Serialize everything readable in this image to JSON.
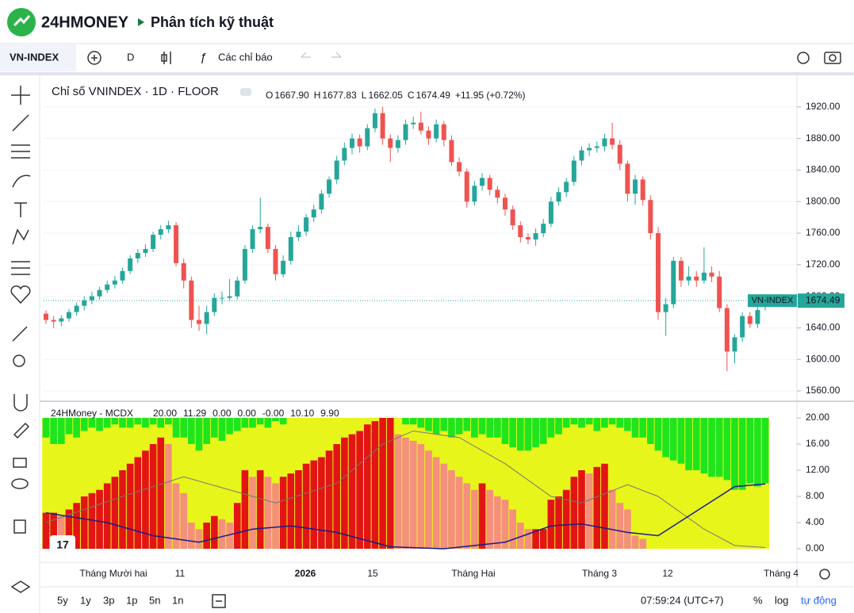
{
  "header": {
    "brand": "24HMONEY",
    "page": "Phân tích kỹ thuật"
  },
  "toolbar": {
    "symbol": "VN-INDEX",
    "interval": "D",
    "indicators": "Các chỉ báo"
  },
  "chart_data": {
    "type": "candlestick",
    "title": "Chỉ số VNINDEX · 1D · FLOOR",
    "ohlc": [
      {
        "key": "O",
        "text": "1667.90"
      },
      {
        "key": "H",
        "text": "1677.83"
      },
      {
        "key": "L",
        "text": "1662.05"
      },
      {
        "key": "C",
        "text": "1674.49"
      }
    ],
    "change": "+11.95 (+0.72%)",
    "up_color": "#26a69a",
    "down_color": "#ef5350",
    "candles": [
      [
        1658,
        1662,
        1645,
        1650
      ],
      [
        1650,
        1655,
        1640,
        1648
      ],
      [
        1648,
        1656,
        1642,
        1652
      ],
      [
        1652,
        1664,
        1648,
        1660
      ],
      [
        1660,
        1672,
        1655,
        1668
      ],
      [
        1668,
        1680,
        1662,
        1675
      ],
      [
        1675,
        1686,
        1670,
        1680
      ],
      [
        1680,
        1692,
        1676,
        1688
      ],
      [
        1688,
        1700,
        1684,
        1695
      ],
      [
        1695,
        1706,
        1690,
        1700
      ],
      [
        1700,
        1716,
        1696,
        1712
      ],
      [
        1712,
        1732,
        1708,
        1728
      ],
      [
        1728,
        1740,
        1722,
        1735
      ],
      [
        1735,
        1746,
        1730,
        1740
      ],
      [
        1740,
        1762,
        1736,
        1758
      ],
      [
        1758,
        1770,
        1752,
        1765
      ],
      [
        1765,
        1776,
        1760,
        1770
      ],
      [
        1770,
        1774,
        1718,
        1722
      ],
      [
        1722,
        1728,
        1690,
        1700
      ],
      [
        1700,
        1705,
        1640,
        1650
      ],
      [
        1650,
        1668,
        1636,
        1645
      ],
      [
        1645,
        1668,
        1632,
        1660
      ],
      [
        1660,
        1684,
        1655,
        1678
      ],
      [
        1678,
        1686,
        1670,
        1678
      ],
      [
        1678,
        1702,
        1674,
        1680
      ],
      [
        1680,
        1705,
        1676,
        1700
      ],
      [
        1700,
        1745,
        1696,
        1740
      ],
      [
        1740,
        1770,
        1735,
        1765
      ],
      [
        1765,
        1805,
        1760,
        1768
      ],
      [
        1768,
        1772,
        1735,
        1740
      ],
      [
        1740,
        1745,
        1700,
        1708
      ],
      [
        1708,
        1732,
        1704,
        1725
      ],
      [
        1725,
        1762,
        1720,
        1755
      ],
      [
        1755,
        1770,
        1750,
        1762
      ],
      [
        1762,
        1784,
        1756,
        1780
      ],
      [
        1780,
        1796,
        1774,
        1790
      ],
      [
        1790,
        1815,
        1785,
        1810
      ],
      [
        1810,
        1832,
        1805,
        1828
      ],
      [
        1828,
        1858,
        1822,
        1852
      ],
      [
        1852,
        1875,
        1846,
        1868
      ],
      [
        1868,
        1886,
        1860,
        1880
      ],
      [
        1880,
        1885,
        1862,
        1870
      ],
      [
        1870,
        1898,
        1865,
        1893
      ],
      [
        1893,
        1918,
        1888,
        1912
      ],
      [
        1912,
        1920,
        1872,
        1880
      ],
      [
        1880,
        1885,
        1850,
        1868
      ],
      [
        1868,
        1884,
        1862,
        1878
      ],
      [
        1878,
        1904,
        1872,
        1898
      ],
      [
        1898,
        1908,
        1892,
        1900
      ],
      [
        1900,
        1914,
        1885,
        1890
      ],
      [
        1890,
        1895,
        1872,
        1880
      ],
      [
        1880,
        1904,
        1875,
        1898
      ],
      [
        1898,
        1902,
        1870,
        1878
      ],
      [
        1878,
        1884,
        1845,
        1850
      ],
      [
        1850,
        1856,
        1832,
        1838
      ],
      [
        1838,
        1842,
        1792,
        1800
      ],
      [
        1800,
        1826,
        1795,
        1820
      ],
      [
        1820,
        1836,
        1814,
        1830
      ],
      [
        1830,
        1834,
        1808,
        1815
      ],
      [
        1815,
        1820,
        1798,
        1805
      ],
      [
        1805,
        1810,
        1782,
        1790
      ],
      [
        1790,
        1795,
        1764,
        1770
      ],
      [
        1770,
        1775,
        1748,
        1755
      ],
      [
        1755,
        1760,
        1746,
        1752
      ],
      [
        1752,
        1766,
        1744,
        1760
      ],
      [
        1760,
        1778,
        1755,
        1772
      ],
      [
        1772,
        1806,
        1768,
        1800
      ],
      [
        1800,
        1818,
        1795,
        1812
      ],
      [
        1812,
        1830,
        1806,
        1825
      ],
      [
        1825,
        1858,
        1820,
        1852
      ],
      [
        1852,
        1870,
        1846,
        1865
      ],
      [
        1865,
        1874,
        1858,
        1868
      ],
      [
        1868,
        1876,
        1862,
        1870
      ],
      [
        1870,
        1886,
        1864,
        1880
      ],
      [
        1880,
        1900,
        1866,
        1872
      ],
      [
        1872,
        1878,
        1840,
        1848
      ],
      [
        1848,
        1852,
        1800,
        1810
      ],
      [
        1810,
        1834,
        1796,
        1828
      ],
      [
        1828,
        1832,
        1795,
        1802
      ],
      [
        1802,
        1808,
        1752,
        1760
      ],
      [
        1760,
        1768,
        1650,
        1660
      ],
      [
        1660,
        1678,
        1630,
        1670
      ],
      [
        1670,
        1730,
        1665,
        1725
      ],
      [
        1725,
        1730,
        1692,
        1700
      ],
      [
        1700,
        1718,
        1694,
        1705
      ],
      [
        1705,
        1712,
        1692,
        1700
      ],
      [
        1700,
        1742,
        1696,
        1710
      ],
      [
        1710,
        1718,
        1698,
        1705
      ],
      [
        1705,
        1712,
        1660,
        1665
      ],
      [
        1665,
        1670,
        1585,
        1610
      ],
      [
        1610,
        1632,
        1595,
        1628
      ],
      [
        1628,
        1660,
        1622,
        1655
      ],
      [
        1655,
        1660,
        1640,
        1645
      ],
      [
        1645,
        1672,
        1640,
        1662.54
      ],
      [
        1667.9,
        1677.83,
        1662.05,
        1674.49
      ]
    ],
    "ylim": [
      1548,
      1960
    ],
    "yticks": [
      {
        "value": 1560,
        "label": "1560.00"
      },
      {
        "value": 1600,
        "label": "1600.00"
      },
      {
        "value": 1640,
        "label": "1640.00"
      },
      {
        "value": 1680,
        "label": "1680.00"
      },
      {
        "value": 1720,
        "label": "1720.00"
      },
      {
        "value": 1760,
        "label": "1760.00"
      },
      {
        "value": 1800,
        "label": "1800.00"
      },
      {
        "value": 1840,
        "label": "1840.00"
      },
      {
        "value": 1880,
        "label": "1880.00"
      },
      {
        "value": 1920,
        "label": "1920.00"
      }
    ],
    "last_tag": {
      "name": "VN-INDEX",
      "price": {
        "value": 1674.49,
        "label": "1674.49"
      }
    },
    "time_labels": [
      "Tháng Mười hai",
      "11",
      "2026",
      "15",
      "Tháng Hai",
      "Tháng 3",
      "12",
      "Tháng 4"
    ]
  },
  "indicator": {
    "title": "24HMoney - MCDX",
    "legend": [
      {
        "text": "20.00",
        "color": "#2bbf2b"
      },
      {
        "text": "11.29",
        "color": "#cccc00"
      },
      {
        "text": "0.00",
        "color": "#e01010"
      },
      {
        "text": "0.00",
        "color": "#f08a78"
      },
      {
        "text": "-0.00",
        "color": "#131722"
      },
      {
        "text": "10.10",
        "color": "#e8a8b8"
      },
      {
        "text": "9.90",
        "color": "#1a1a8c"
      }
    ],
    "colors": {
      "banker": "#e31414",
      "banker_down": "#f4907c",
      "retail": "#1ee51e",
      "hot": "#e8f51a",
      "blue": "#1a1a8c",
      "gray": "#777777"
    },
    "ylim": [
      -1.94,
      22.42
    ],
    "yticks": [
      {
        "value": 0,
        "label": "0.00"
      },
      {
        "value": 4,
        "label": "4.00"
      },
      {
        "value": 8,
        "label": "8.00"
      },
      {
        "value": 12,
        "label": "12.00"
      },
      {
        "value": 16,
        "label": "16.00"
      },
      {
        "value": 20,
        "label": "20.00"
      }
    ],
    "banker": [
      5.5,
      5.5,
      5,
      6,
      7,
      8,
      8.5,
      9,
      10,
      11,
      12,
      13,
      14,
      15,
      16,
      17,
      16,
      10,
      8.5,
      4,
      3,
      4,
      5,
      4.5,
      4,
      7,
      12,
      11,
      12,
      11,
      10,
      11,
      11.5,
      12,
      13,
      13.5,
      14,
      15,
      16,
      17,
      17.5,
      18,
      19,
      19.5,
      20,
      20,
      17.5,
      17,
      16.5,
      16,
      15,
      14,
      13,
      12,
      11,
      10,
      9,
      10,
      9,
      8,
      7.5,
      6,
      4,
      3,
      3,
      3,
      7.5,
      8,
      9,
      11,
      12,
      11.5,
      12.5,
      13,
      9,
      7,
      6,
      2,
      1.5,
      0,
      0,
      0,
      0,
      0,
      0,
      0,
      0,
      0,
      0,
      0,
      0,
      0,
      0,
      0,
      0
    ],
    "retail": [
      3,
      4,
      4,
      2.5,
      3,
      2,
      1.5,
      2,
      1.5,
      1,
      1.5,
      1.5,
      1,
      1.5,
      1,
      1.5,
      1,
      3,
      3,
      4,
      5,
      4,
      3,
      3.5,
      2.5,
      2,
      1.5,
      1.5,
      1,
      1.5,
      0.5,
      1,
      0,
      0,
      0,
      0,
      0,
      0,
      0,
      0,
      0,
      0,
      0,
      0,
      0,
      0,
      0,
      1,
      1,
      1.5,
      2,
      2.5,
      2,
      3,
      2.5,
      2,
      3,
      2.5,
      3,
      3,
      4,
      4.5,
      5,
      5,
      4.5,
      4,
      3,
      2.5,
      1.5,
      1,
      1.5,
      1,
      2,
      1.5,
      1,
      1.5,
      2,
      3,
      3,
      4,
      5,
      6,
      6.5,
      7,
      8,
      8,
      8.5,
      9,
      9,
      9.5,
      11,
      11,
      10,
      10.5,
      10
    ],
    "blue_line": [
      [
        0,
        5.5
      ],
      [
        8,
        4
      ],
      [
        14,
        2
      ],
      [
        20,
        1
      ],
      [
        27,
        3
      ],
      [
        32,
        3.5
      ],
      [
        38,
        2.5
      ],
      [
        45,
        0.3
      ],
      [
        52,
        0
      ],
      [
        60,
        1
      ],
      [
        66,
        3.5
      ],
      [
        70,
        3.8
      ],
      [
        76,
        2.5
      ],
      [
        80,
        2
      ],
      [
        84,
        5
      ],
      [
        88,
        8
      ],
      [
        90,
        9.5
      ],
      [
        94,
        9.9
      ]
    ],
    "gray_line": [
      [
        0,
        4
      ],
      [
        10,
        8
      ],
      [
        18,
        11
      ],
      [
        24,
        9
      ],
      [
        30,
        7
      ],
      [
        38,
        10
      ],
      [
        44,
        16
      ],
      [
        48,
        18
      ],
      [
        54,
        17
      ],
      [
        60,
        13
      ],
      [
        66,
        8
      ],
      [
        70,
        7
      ],
      [
        76,
        9.8
      ],
      [
        80,
        8
      ],
      [
        86,
        3
      ],
      [
        90,
        0.5
      ],
      [
        94,
        0.2
      ]
    ]
  },
  "bottom": {
    "ranges": [
      "5y",
      "1y",
      "3p",
      "1p",
      "5n",
      "1n"
    ],
    "clock": "07:59:24 (UTC+7)",
    "percent": "%",
    "log": "log",
    "auto": "tự động"
  }
}
